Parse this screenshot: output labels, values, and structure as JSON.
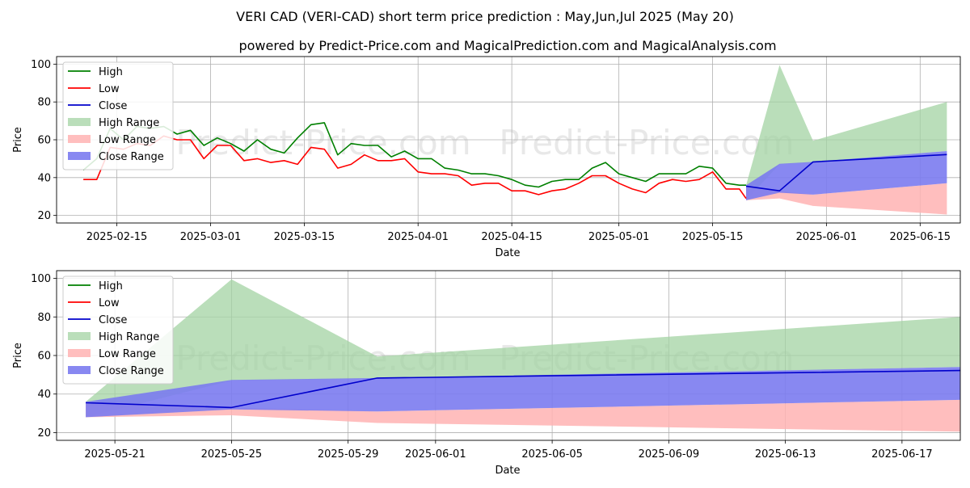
{
  "title": "VERI CAD (VERI-CAD) short term price prediction : May,Jun,Jul 2025 (May 20)",
  "subtitle": "powered by Predict-Price.com and MagicalPrediction.com and MagicalAnalysis.com",
  "watermark": "Predict-Price.com",
  "colors": {
    "high": "#008000",
    "low": "#ff0000",
    "close": "#0000cc",
    "high_range": "#a3d3a3",
    "low_range": "#ffb3b3",
    "close_range": "#7b7bef"
  },
  "chart_data": [
    {
      "type": "line",
      "xlabel": "Date",
      "ylabel": "Price",
      "ylim": [
        16,
        104
      ],
      "xlim": [
        "2025-02-06",
        "2025-06-21"
      ],
      "yticks": [
        20,
        40,
        60,
        80,
        100
      ],
      "xticks": [
        "2025-02-15",
        "2025-03-01",
        "2025-03-15",
        "2025-04-01",
        "2025-04-15",
        "2025-05-01",
        "2025-05-15",
        "2025-06-01",
        "2025-06-15"
      ],
      "grid": true,
      "legend": "upper-left",
      "legend_entries": [
        "High",
        "Low",
        "Close",
        "High Range",
        "Low Range",
        "Close Range"
      ],
      "history": {
        "dates": [
          "2025-02-10",
          "2025-02-12",
          "2025-02-14",
          "2025-02-16",
          "2025-02-18",
          "2025-02-20",
          "2025-02-22",
          "2025-02-24",
          "2025-02-26",
          "2025-02-28",
          "2025-03-02",
          "2025-03-04",
          "2025-03-06",
          "2025-03-08",
          "2025-03-10",
          "2025-03-12",
          "2025-03-14",
          "2025-03-16",
          "2025-03-18",
          "2025-03-20",
          "2025-03-22",
          "2025-03-24",
          "2025-03-26",
          "2025-03-28",
          "2025-03-30",
          "2025-04-01",
          "2025-04-03",
          "2025-04-05",
          "2025-04-07",
          "2025-04-09",
          "2025-04-11",
          "2025-04-13",
          "2025-04-15",
          "2025-04-17",
          "2025-04-19",
          "2025-04-21",
          "2025-04-23",
          "2025-04-25",
          "2025-04-27",
          "2025-04-29",
          "2025-05-01",
          "2025-05-03",
          "2025-05-05",
          "2025-05-07",
          "2025-05-09",
          "2025-05-11",
          "2025-05-13",
          "2025-05-15",
          "2025-05-17",
          "2025-05-19",
          "2025-05-20"
        ],
        "high": [
          44,
          50,
          66,
          60,
          67,
          66,
          67,
          63,
          65,
          57,
          61,
          58,
          54,
          60,
          55,
          53,
          61,
          68,
          69,
          52,
          58,
          57,
          57,
          51,
          54,
          50,
          50,
          45,
          44,
          42,
          42,
          41,
          39,
          36,
          35,
          38,
          39,
          39,
          45,
          48,
          42,
          40,
          38,
          42,
          42,
          42,
          46,
          45,
          37,
          36,
          36
        ],
        "low": [
          39,
          39,
          56,
          55,
          58,
          57,
          62,
          60,
          60,
          50,
          57,
          57,
          49,
          50,
          48,
          49,
          47,
          56,
          55,
          45,
          47,
          52,
          49,
          49,
          50,
          43,
          42,
          42,
          41,
          36,
          37,
          37,
          33,
          33,
          31,
          33,
          34,
          37,
          41,
          41,
          37,
          34,
          32,
          37,
          39,
          38,
          39,
          43,
          34,
          34,
          29
        ]
      },
      "forecast": {
        "dates": [
          "2025-05-20",
          "2025-05-25",
          "2025-05-30",
          "2025-06-19"
        ],
        "close": [
          35.5,
          33,
          48.3,
          52.2
        ],
        "high_range_upper": [
          36,
          99.5,
          59.5,
          80
        ],
        "high_range_lower": [
          28,
          47,
          48,
          54
        ],
        "low_range_upper": [
          36,
          33,
          31,
          37
        ],
        "low_range_lower": [
          28,
          29,
          25,
          20.5
        ],
        "close_range_upper": [
          36,
          47.3,
          48.3,
          54
        ],
        "close_range_lower": [
          28,
          32,
          31,
          37
        ]
      }
    },
    {
      "type": "line",
      "xlabel": "Date",
      "ylabel": "Price",
      "ylim": [
        16,
        104
      ],
      "xlim": [
        "2025-05-19",
        "2025-06-19"
      ],
      "yticks": [
        20,
        40,
        60,
        80,
        100
      ],
      "xticks": [
        "2025-05-21",
        "2025-05-25",
        "2025-05-29",
        "2025-06-01",
        "2025-06-05",
        "2025-06-09",
        "2025-06-13",
        "2025-06-17"
      ],
      "grid": true,
      "legend": "upper-left",
      "legend_entries": [
        "High",
        "Low",
        "Close",
        "High Range",
        "Low Range",
        "Close Range"
      ],
      "forecast": {
        "dates": [
          "2025-05-20",
          "2025-05-25",
          "2025-05-30",
          "2025-06-19"
        ],
        "close": [
          35.5,
          33,
          48.3,
          52.2
        ],
        "high_range_upper": [
          36,
          99.5,
          59.5,
          80
        ],
        "high_range_lower": [
          28,
          47,
          48,
          54
        ],
        "low_range_upper": [
          36,
          33,
          31,
          37
        ],
        "low_range_lower": [
          28,
          29,
          25,
          20.5
        ],
        "close_range_upper": [
          36,
          47.3,
          48.3,
          54
        ],
        "close_range_lower": [
          28,
          32,
          31,
          37
        ]
      }
    }
  ]
}
